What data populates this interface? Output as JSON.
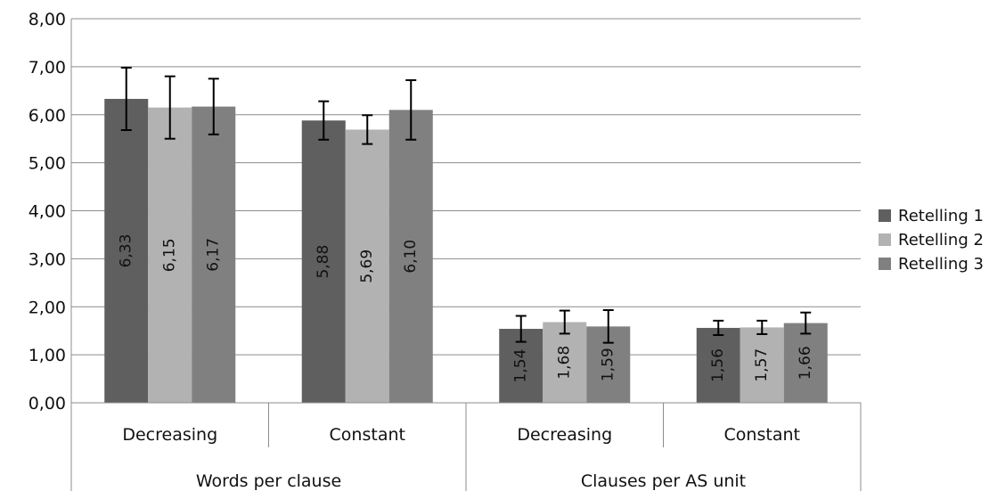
{
  "chart_data": {
    "type": "bar",
    "groups": [
      {
        "label": "Words per clause",
        "categories": [
          "Decreasing",
          "Constant"
        ]
      },
      {
        "label": "Clauses per AS unit",
        "categories": [
          "Decreasing",
          "Constant"
        ]
      }
    ],
    "series": [
      {
        "name": "Retelling 1",
        "color": "#5f5f5f",
        "values": [
          6.33,
          5.88,
          1.54,
          1.56
        ],
        "labels": [
          "6,33",
          "5,88",
          "1,54",
          "1,56"
        ],
        "error": [
          0.65,
          0.4,
          0.27,
          0.15
        ]
      },
      {
        "name": "Retelling 2",
        "color": "#b2b2b2",
        "values": [
          6.15,
          5.69,
          1.68,
          1.57
        ],
        "labels": [
          "6,15",
          "5,69",
          "1,68",
          "1,57"
        ],
        "error": [
          0.65,
          0.3,
          0.24,
          0.14
        ]
      },
      {
        "name": "Retelling 3",
        "color": "#808080",
        "values": [
          6.17,
          6.1,
          1.59,
          1.66
        ],
        "labels": [
          "6,17",
          "6,10",
          "1,59",
          "1,66"
        ],
        "error": [
          0.58,
          0.62,
          0.34,
          0.22
        ]
      }
    ],
    "ylim": [
      0,
      8
    ],
    "yticks": [
      0,
      1,
      2,
      3,
      4,
      5,
      6,
      7,
      8
    ],
    "ytick_labels": [
      "0,00",
      "1,00",
      "2,00",
      "3,00",
      "4,00",
      "5,00",
      "6,00",
      "7,00",
      "8,00"
    ],
    "grid": true,
    "legend_position": "right",
    "title": "",
    "xlabel": "",
    "ylabel": ""
  }
}
